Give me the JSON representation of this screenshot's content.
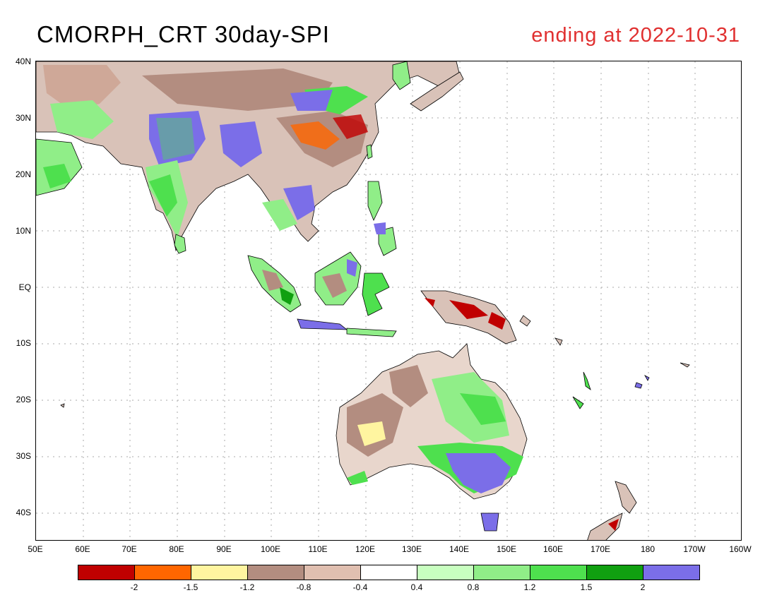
{
  "title": {
    "left": "CMORPH_CRT 30day-SPI",
    "right": "ending at 2022-10-31",
    "right_color": "#e03030"
  },
  "map": {
    "lat_labels": [
      "40N",
      "30N",
      "20N",
      "10N",
      "EQ",
      "10S",
      "20S",
      "30S",
      "40S"
    ],
    "lon_labels": [
      "50E",
      "60E",
      "70E",
      "80E",
      "90E",
      "100E",
      "110E",
      "120E",
      "130E",
      "140E",
      "150E",
      "160E",
      "170E",
      "180",
      "170W",
      "160W"
    ]
  },
  "colorbar": {
    "colors": [
      "#c00000",
      "#ff6600",
      "#fff5a0",
      "#b38d80",
      "#e0bfb0",
      "#ffffff",
      "#c8ffc0",
      "#90ee88",
      "#4ee04e",
      "#10a010",
      "#7b6ee8"
    ],
    "labels": [
      "-2",
      "-1.5",
      "-1.2",
      "-0.8",
      "-0.4",
      "0.4",
      "0.8",
      "1.2",
      "1.5",
      "2"
    ]
  }
}
